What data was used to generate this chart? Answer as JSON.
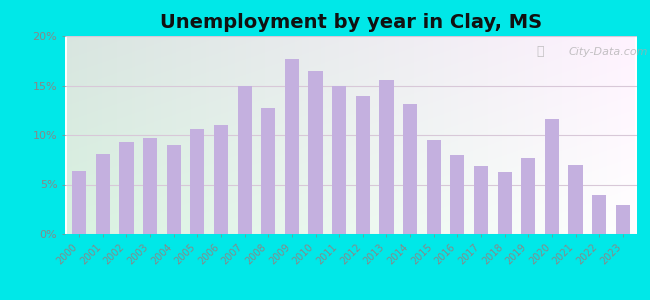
{
  "title": "Unemployment by year in Clay, MS",
  "years": [
    2000,
    2001,
    2002,
    2003,
    2004,
    2005,
    2006,
    2007,
    2008,
    2009,
    2010,
    2011,
    2012,
    2013,
    2014,
    2015,
    2016,
    2017,
    2018,
    2019,
    2020,
    2021,
    2022,
    2023
  ],
  "values": [
    6.4,
    8.1,
    9.3,
    9.7,
    9.0,
    10.6,
    11.0,
    14.9,
    12.7,
    17.7,
    16.5,
    15.0,
    13.9,
    15.6,
    13.1,
    9.5,
    8.0,
    6.9,
    6.3,
    7.7,
    11.6,
    7.0,
    3.9,
    2.9
  ],
  "bar_color": "#c4b0df",
  "bg_outer": "#00e8e8",
  "ylim": [
    0,
    20
  ],
  "yticks": [
    0,
    5,
    10,
    15,
    20
  ],
  "ytick_labels": [
    "0%",
    "5%",
    "10%",
    "15%",
    "20%"
  ],
  "title_fontsize": 14,
  "watermark": "City-Data.com",
  "grid_color": "#e0e0e0"
}
